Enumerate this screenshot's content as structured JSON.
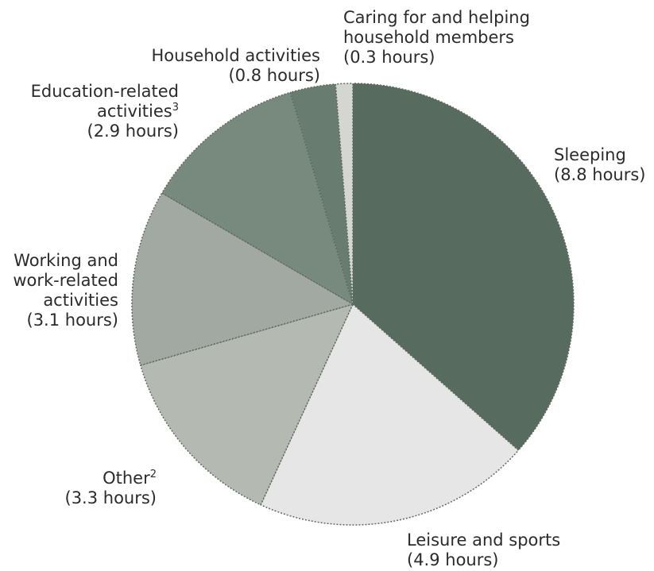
{
  "chart_data": {
    "type": "pie",
    "unit": "hours",
    "slices": [
      {
        "label": "Sleeping",
        "value": 8.8,
        "value_label": "(8.8 hours)",
        "color": "#576b5e"
      },
      {
        "label": "Leisure and sports",
        "value": 4.9,
        "value_label": "(4.9 hours)",
        "color": "#e6e6e6"
      },
      {
        "label": "Other",
        "footnote": "2",
        "value": 3.3,
        "value_label": "(3.3 hours)",
        "color": "#b4b9b1"
      },
      {
        "label": "Working and work-related activities",
        "value": 3.1,
        "value_label": "(3.1 hours)",
        "color": "#a2a9a2"
      },
      {
        "label": "Education-related activities",
        "footnote": "3",
        "value": 2.9,
        "value_label": "(2.9 hours)",
        "color": "#788a7d"
      },
      {
        "label": "Household activities",
        "value": 0.8,
        "value_label": "(0.8 hours)",
        "color": "#687d6f"
      },
      {
        "label": "Caring for and helping household members",
        "value": 0.3,
        "value_label": "(0.3 hours)",
        "color": "#d4d6d2"
      }
    ]
  },
  "labels": {
    "sleeping": {
      "line1": "Sleeping",
      "line2": "(8.8 hours)"
    },
    "leisure": {
      "line1": "Leisure and sports",
      "line2": "(4.9 hours)"
    },
    "other": {
      "line1": "Other",
      "sup": "2",
      "line2": "(3.3 hours)"
    },
    "working": {
      "line1": "Working and",
      "line2": "work-related",
      "line3": "activities",
      "line4": "(3.1 hours)"
    },
    "education": {
      "line1": "Education-related",
      "line2": "activities",
      "sup": "3",
      "line3": "(2.9 hours)"
    },
    "household": {
      "line1": "Household activities",
      "line2": "(0.8 hours)"
    },
    "caring": {
      "line1": "Caring for and helping",
      "line2": "household members",
      "line3": "(0.3 hours)"
    }
  }
}
